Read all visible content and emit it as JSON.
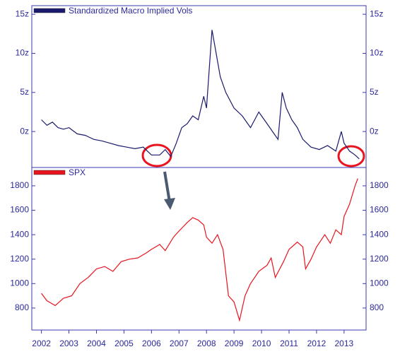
{
  "chart_data": [
    {
      "type": "line",
      "xlim": [
        2001.65,
        2013.8
      ],
      "ylim": [
        -4.6,
        16.1
      ],
      "yticks": [
        {
          "value": 0,
          "label": "0z"
        },
        {
          "value": 5,
          "label": "5z"
        },
        {
          "value": 10,
          "label": "10z"
        },
        {
          "value": 15,
          "label": "15z"
        }
      ],
      "series": [
        {
          "name": "Standardized Macro Implied Vols",
          "color": "#1a1a6e",
          "x": [
            2002.0,
            2002.2,
            2002.4,
            2002.6,
            2002.8,
            2003.0,
            2003.3,
            2003.6,
            2003.9,
            2004.2,
            2004.5,
            2004.8,
            2005.1,
            2005.4,
            2005.7,
            2006.0,
            2006.3,
            2006.5,
            2006.7,
            2006.9,
            2007.1,
            2007.3,
            2007.5,
            2007.7,
            2007.9,
            2008.0,
            2008.1,
            2008.2,
            2008.3,
            2008.5,
            2008.7,
            2009.0,
            2009.3,
            2009.6,
            2009.9,
            2010.2,
            2010.4,
            2010.6,
            2010.75,
            2010.9,
            2011.1,
            2011.3,
            2011.5,
            2011.8,
            2012.1,
            2012.4,
            2012.7,
            2012.9,
            2013.0,
            2013.2,
            2013.4,
            2013.55
          ],
          "values": [
            1.5,
            0.8,
            1.2,
            0.5,
            0.3,
            0.5,
            -0.3,
            -0.5,
            -1.0,
            -1.2,
            -1.5,
            -1.8,
            -2.0,
            -2.2,
            -2.0,
            -3.0,
            -3.0,
            -2.3,
            -3.2,
            -1.5,
            0.5,
            1.0,
            2.0,
            1.5,
            4.5,
            3.0,
            8,
            13,
            11,
            7,
            5,
            3,
            2,
            0.5,
            2.5,
            1.0,
            0,
            -1,
            5,
            3,
            1.5,
            0.5,
            -1.0,
            -2,
            -2.3,
            -1.8,
            -2.5,
            0,
            -1.5,
            -2.5,
            -3.0,
            -3.5
          ]
        }
      ]
    },
    {
      "type": "line",
      "xlim": [
        2001.65,
        2013.8
      ],
      "ylim": [
        620,
        1950
      ],
      "xticks": [
        2002,
        2003,
        2004,
        2005,
        2006,
        2007,
        2008,
        2009,
        2010,
        2011,
        2012,
        2013
      ],
      "yticks": [
        800,
        1000,
        1200,
        1400,
        1600,
        1800
      ],
      "series": [
        {
          "name": "SPX",
          "color": "#e8141e",
          "x": [
            2002.0,
            2002.2,
            2002.5,
            2002.8,
            2003.1,
            2003.4,
            2003.7,
            2004.0,
            2004.3,
            2004.6,
            2004.9,
            2005.2,
            2005.5,
            2005.8,
            2006.0,
            2006.3,
            2006.5,
            2006.8,
            2007.0,
            2007.3,
            2007.5,
            2007.7,
            2007.9,
            2008.0,
            2008.2,
            2008.4,
            2008.6,
            2008.8,
            2009.0,
            2009.2,
            2009.4,
            2009.6,
            2009.9,
            2010.2,
            2010.35,
            2010.5,
            2010.8,
            2011.0,
            2011.3,
            2011.5,
            2011.6,
            2011.8,
            2012.0,
            2012.3,
            2012.5,
            2012.7,
            2012.9,
            2013.0,
            2013.2,
            2013.4,
            2013.5
          ],
          "values": [
            920,
            860,
            820,
            880,
            900,
            1000,
            1050,
            1120,
            1140,
            1100,
            1180,
            1200,
            1210,
            1250,
            1280,
            1320,
            1270,
            1380,
            1430,
            1500,
            1540,
            1520,
            1480,
            1380,
            1330,
            1400,
            1280,
            900,
            850,
            700,
            900,
            1000,
            1100,
            1150,
            1210,
            1050,
            1180,
            1280,
            1340,
            1300,
            1120,
            1200,
            1300,
            1400,
            1330,
            1440,
            1400,
            1550,
            1650,
            1800,
            1860
          ]
        }
      ]
    }
  ]
}
